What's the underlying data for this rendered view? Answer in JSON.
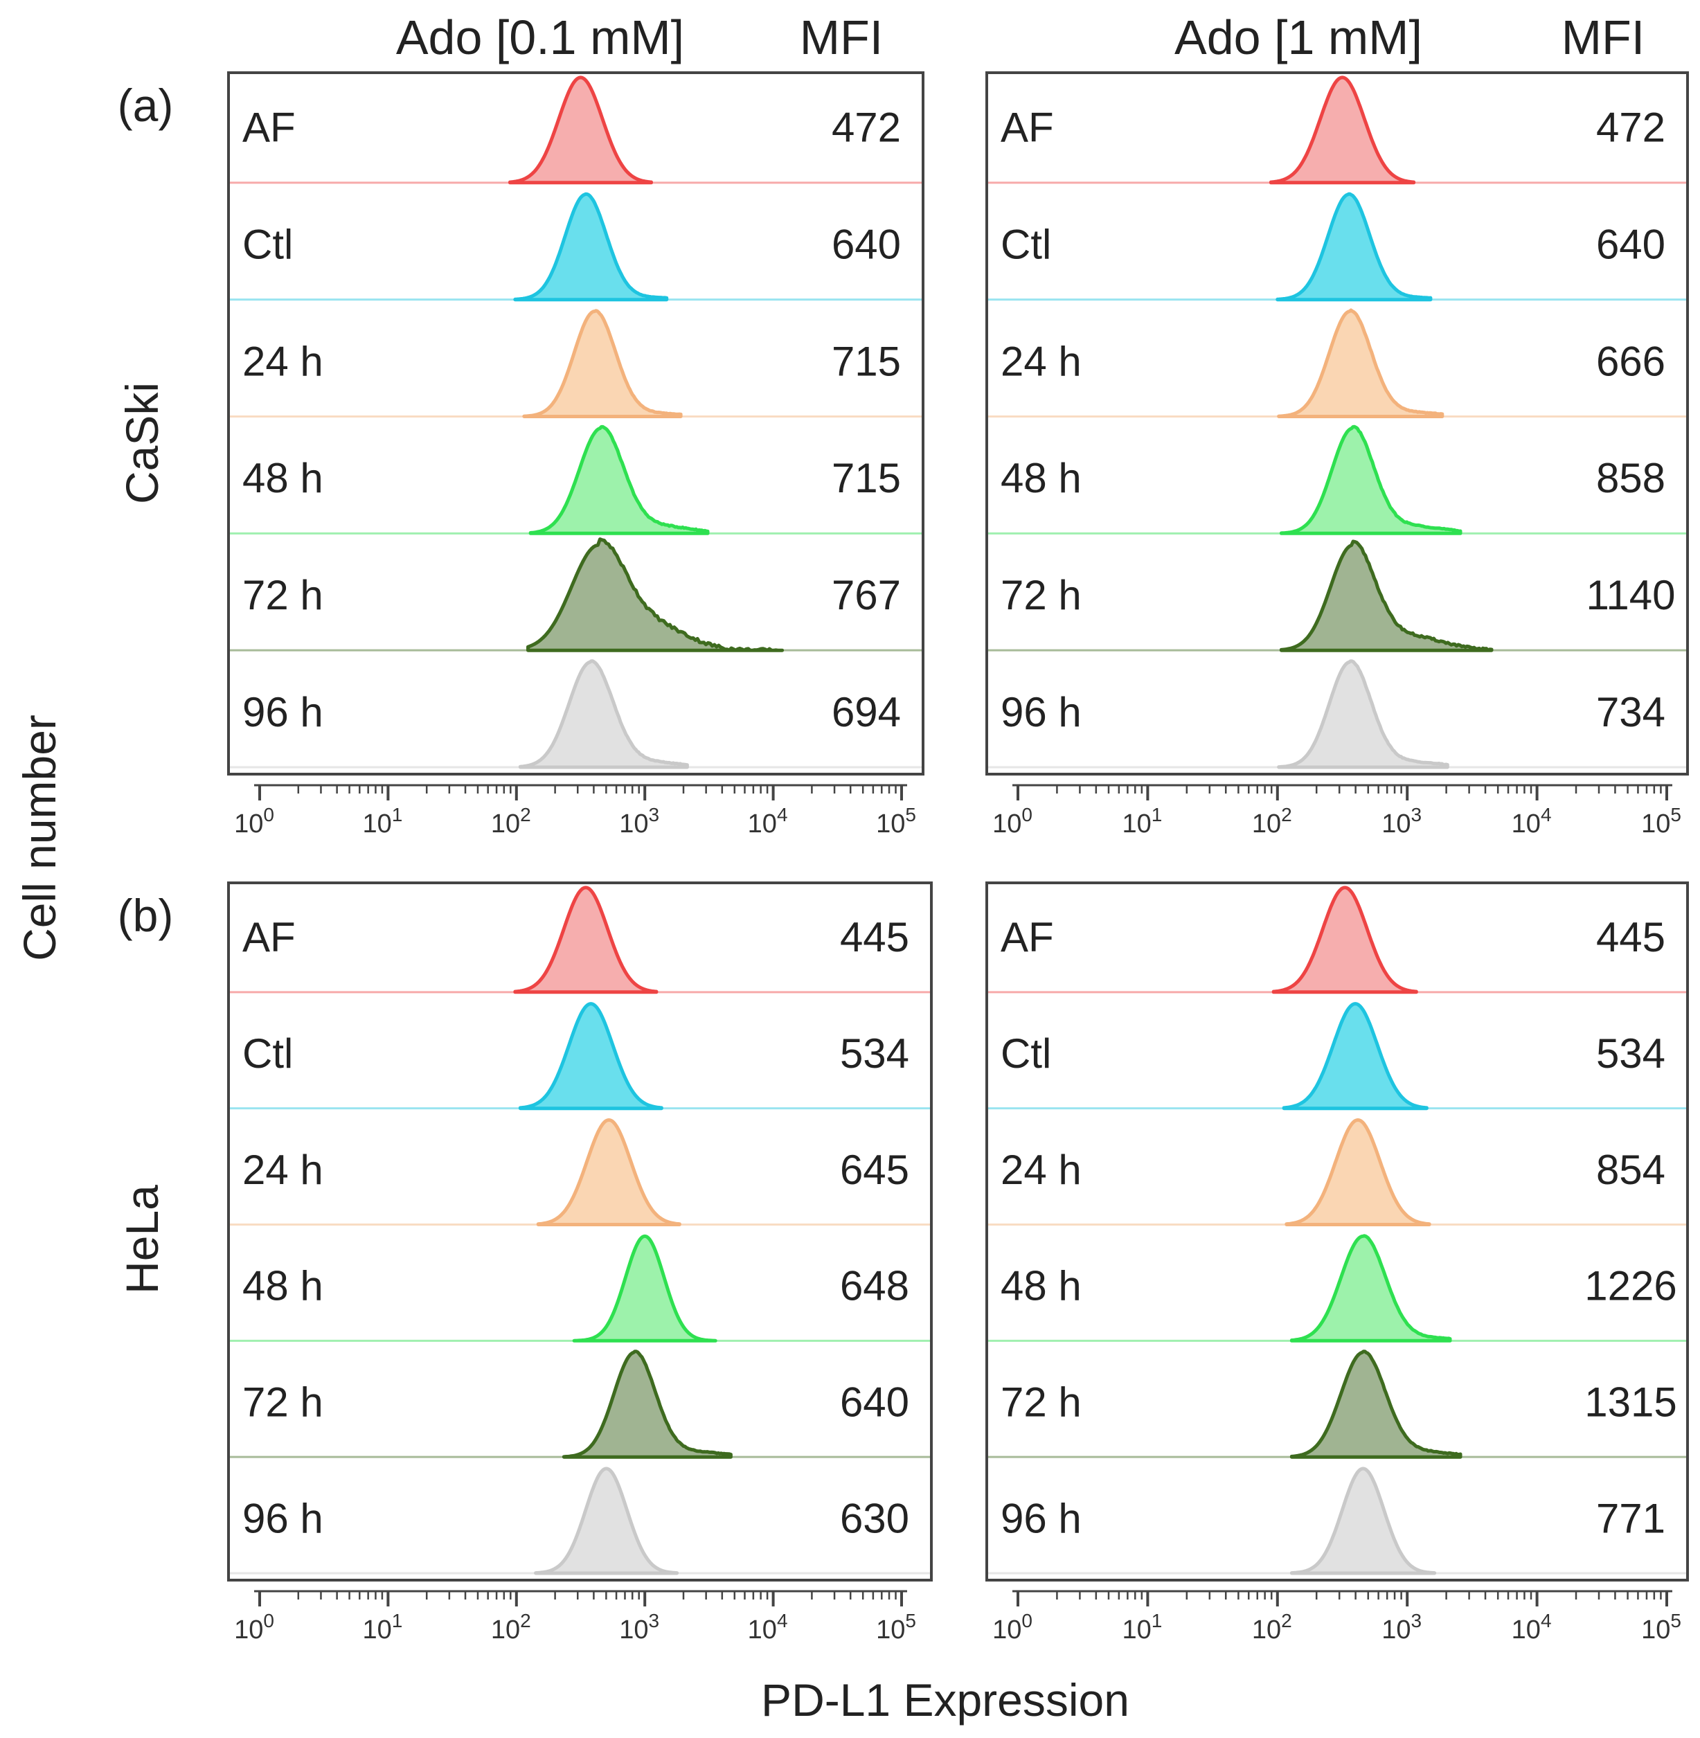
{
  "figure": {
    "y_axis_label": "Cell number",
    "x_axis_label": "PD-L1 Expression",
    "mfi_header": "MFI",
    "columns": [
      "Ado [0.1 mM]",
      "Ado [1 mM]"
    ],
    "panel_labels": [
      "(a)",
      "(b)"
    ],
    "cell_lines": [
      "CaSki",
      "HeLa"
    ],
    "row_labels": [
      "AF",
      "Ctl",
      "24 h",
      "48 h",
      "72 h",
      "96 h"
    ],
    "row_colors": {
      "AF": {
        "line": "#ee4444",
        "fill": "#f4a0a0"
      },
      "Ctl": {
        "line": "#1ec4e0",
        "fill": "#4fd9ea"
      },
      "24 h": {
        "line": "#f3b27c",
        "fill": "#f9cfa6"
      },
      "48 h": {
        "line": "#2ee050",
        "fill": "#8cf09c"
      },
      "72 h": {
        "line": "#3e6b1f",
        "fill": "#8fa77f"
      },
      "96 h": {
        "line": "#c9c9c9",
        "fill": "#dcdcdc"
      }
    },
    "x_ticks": [
      {
        "base": "10",
        "exp": "0"
      },
      {
        "base": "10",
        "exp": "1"
      },
      {
        "base": "10",
        "exp": "2"
      },
      {
        "base": "10",
        "exp": "3"
      },
      {
        "base": "10",
        "exp": "4"
      },
      {
        "base": "10",
        "exp": "5"
      }
    ]
  },
  "chart_data": [
    {
      "type": "area",
      "panel": "(a)",
      "cell_line": "CaSki",
      "condition": "Ado [0.1 mM]",
      "x_scale": "log",
      "xlim": [
        1,
        100000
      ],
      "series": [
        {
          "name": "AF",
          "mfi": "472",
          "peak_log": 2.5,
          "width_log": 0.17,
          "tail": 0.0
        },
        {
          "name": "Ctl",
          "mfi": "640",
          "peak_log": 2.54,
          "width_log": 0.16,
          "tail": 0.02
        },
        {
          "name": "24 h",
          "mfi": "715",
          "peak_log": 2.61,
          "width_log": 0.16,
          "tail": 0.03
        },
        {
          "name": "48 h",
          "mfi": "715",
          "peak_log": 2.66,
          "width_log": 0.17,
          "tail": 0.07
        },
        {
          "name": "72 h",
          "mfi": "767",
          "peak_log": 2.64,
          "width_log": 0.21,
          "tail": 0.22
        },
        {
          "name": "96 h",
          "mfi": "694",
          "peak_log": 2.58,
          "width_log": 0.17,
          "tail": 0.05
        }
      ]
    },
    {
      "type": "area",
      "panel": "(a)",
      "cell_line": "CaSki",
      "condition": "Ado [1 mM]",
      "x_scale": "log",
      "xlim": [
        1,
        100000
      ],
      "series": [
        {
          "name": "AF",
          "mfi": "472",
          "peak_log": 2.5,
          "width_log": 0.17,
          "tail": 0.0
        },
        {
          "name": "Ctl",
          "mfi": "640",
          "peak_log": 2.55,
          "width_log": 0.16,
          "tail": 0.02
        },
        {
          "name": "24 h",
          "mfi": "666",
          "peak_log": 2.56,
          "width_log": 0.16,
          "tail": 0.04
        },
        {
          "name": "48 h",
          "mfi": "858",
          "peak_log": 2.58,
          "width_log": 0.16,
          "tail": 0.07
        },
        {
          "name": "72 h",
          "mfi": "1140",
          "peak_log": 2.58,
          "width_log": 0.17,
          "tail": 0.13
        },
        {
          "name": "96 h",
          "mfi": "734",
          "peak_log": 2.56,
          "width_log": 0.16,
          "tail": 0.05
        }
      ]
    },
    {
      "type": "area",
      "panel": "(b)",
      "cell_line": "HeLa",
      "condition": "Ado [0.1 mM]",
      "x_scale": "log",
      "xlim": [
        1,
        100000
      ],
      "series": [
        {
          "name": "AF",
          "mfi": "445",
          "peak_log": 2.54,
          "width_log": 0.17,
          "tail": 0.0
        },
        {
          "name": "Ctl",
          "mfi": "534",
          "peak_log": 2.58,
          "width_log": 0.17,
          "tail": 0.0
        },
        {
          "name": "24 h",
          "mfi": "645",
          "peak_log": 2.72,
          "width_log": 0.17,
          "tail": 0.0
        },
        {
          "name": "48 h",
          "mfi": "648",
          "peak_log": 3.0,
          "width_log": 0.15,
          "tail": 0.0
        },
        {
          "name": "72 h",
          "mfi": "640",
          "peak_log": 2.92,
          "width_log": 0.16,
          "tail": 0.05
        },
        {
          "name": "96 h",
          "mfi": "630",
          "peak_log": 2.7,
          "width_log": 0.16,
          "tail": 0.0
        }
      ]
    },
    {
      "type": "area",
      "panel": "(b)",
      "cell_line": "HeLa",
      "condition": "Ado [1 mM]",
      "x_scale": "log",
      "xlim": [
        1,
        100000
      ],
      "series": [
        {
          "name": "AF",
          "mfi": "445",
          "peak_log": 2.52,
          "width_log": 0.17,
          "tail": 0.0
        },
        {
          "name": "Ctl",
          "mfi": "534",
          "peak_log": 2.6,
          "width_log": 0.17,
          "tail": 0.0
        },
        {
          "name": "24 h",
          "mfi": "854",
          "peak_log": 2.62,
          "width_log": 0.17,
          "tail": 0.0
        },
        {
          "name": "48 h",
          "mfi": "1226",
          "peak_log": 2.66,
          "width_log": 0.17,
          "tail": 0.03
        },
        {
          "name": "72 h",
          "mfi": "1315",
          "peak_log": 2.66,
          "width_log": 0.17,
          "tail": 0.05
        },
        {
          "name": "96 h",
          "mfi": "771",
          "peak_log": 2.66,
          "width_log": 0.16,
          "tail": 0.0
        }
      ]
    }
  ]
}
